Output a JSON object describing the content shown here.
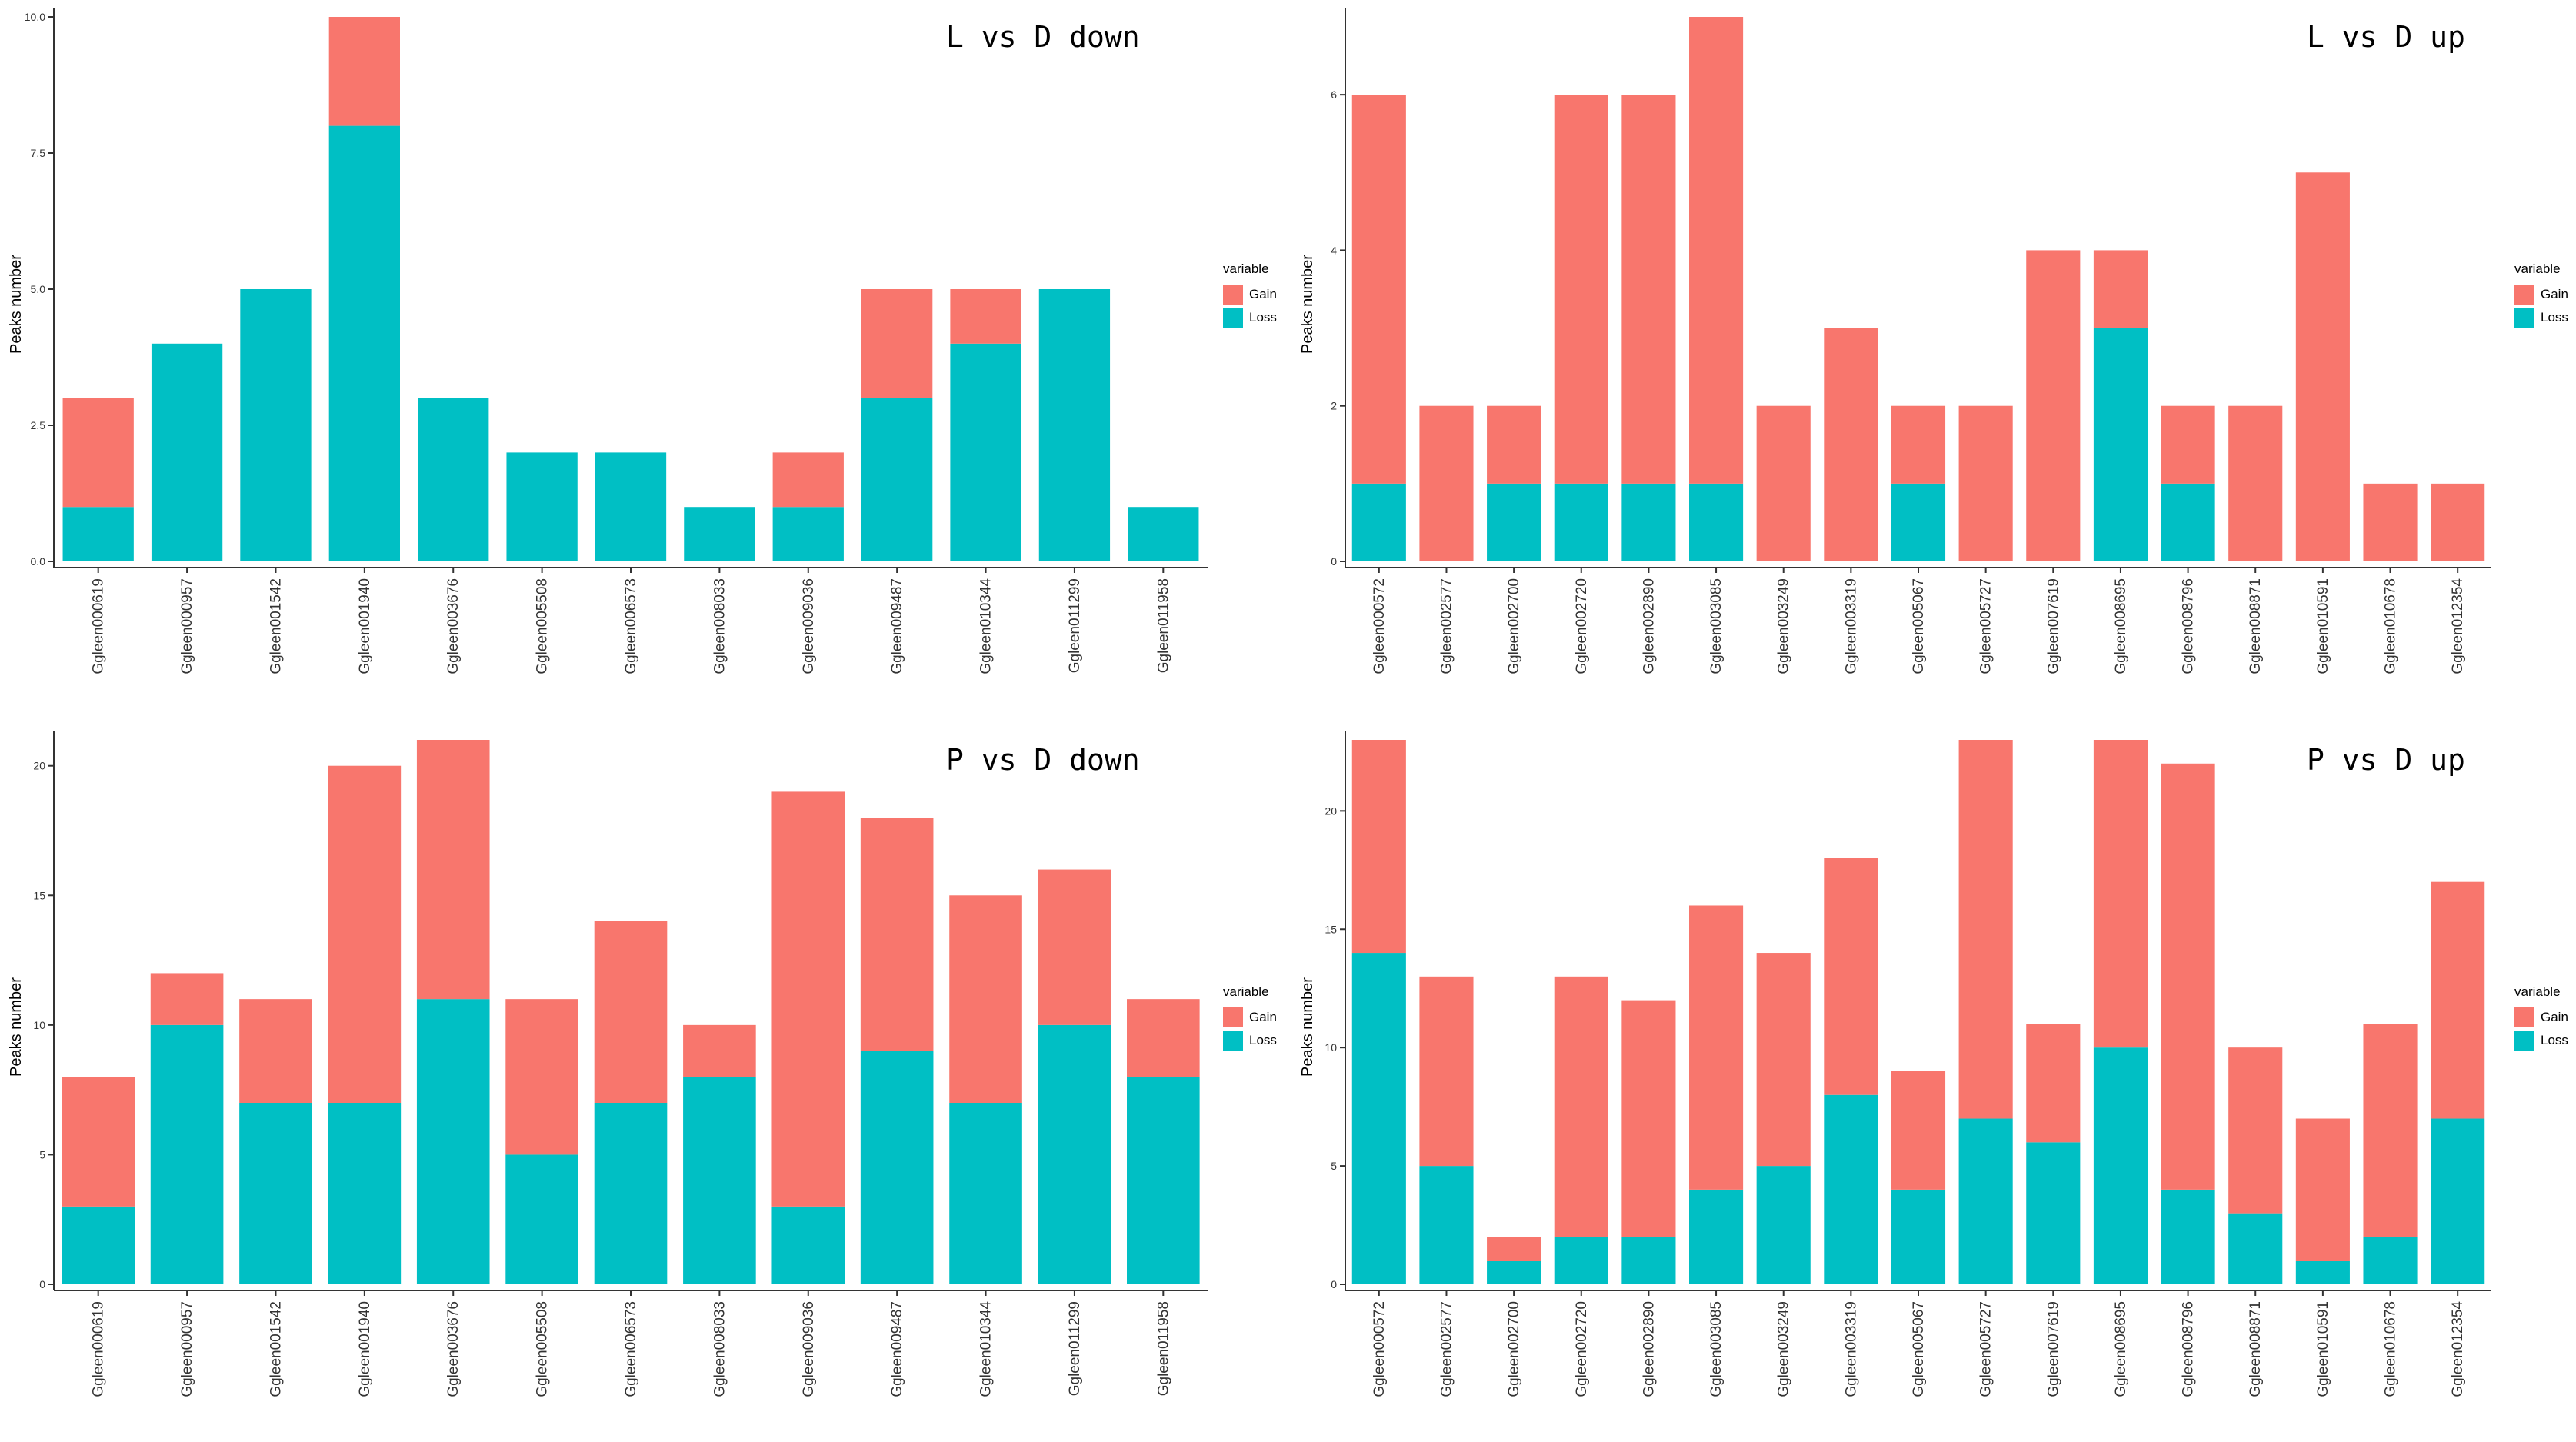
{
  "legend": {
    "title": "variable",
    "gain": "Gain",
    "loss": "Loss"
  },
  "colors": {
    "gain": "#F8766D",
    "loss": "#00BFC4",
    "axis": "#333333"
  },
  "chart_data": [
    {
      "type": "bar",
      "stacked": true,
      "title": "L vs D down",
      "ylabel": "Peaks number",
      "ylim": [
        0,
        10
      ],
      "yticks": [
        "0.0",
        "2.5",
        "5.0",
        "7.5",
        "10.0"
      ],
      "categories": [
        "Ggleen000619",
        "Ggleen000957",
        "Ggleen001542",
        "Ggleen001940",
        "Ggleen003676",
        "Ggleen005508",
        "Ggleen006573",
        "Ggleen008033",
        "Ggleen009036",
        "Ggleen009487",
        "Ggleen010344",
        "Ggleen011299",
        "Ggleen011958"
      ],
      "series": [
        {
          "name": "Loss",
          "values": [
            1,
            4,
            5,
            8,
            3,
            2,
            2,
            1,
            1,
            3,
            4,
            5,
            1
          ]
        },
        {
          "name": "Gain",
          "values": [
            2,
            0,
            0,
            2,
            0,
            0,
            0,
            0,
            1,
            2,
            1,
            0,
            0
          ]
        }
      ]
    },
    {
      "type": "bar",
      "stacked": true,
      "title": "L vs D up",
      "ylabel": "Peaks number",
      "ylim": [
        0,
        7
      ],
      "yticks": [
        "0",
        "2",
        "4",
        "6"
      ],
      "categories": [
        "Ggleen000572",
        "Ggleen002577",
        "Ggleen002700",
        "Ggleen002720",
        "Ggleen002890",
        "Ggleen003085",
        "Ggleen003249",
        "Ggleen003319",
        "Ggleen005067",
        "Ggleen005727",
        "Ggleen007619",
        "Ggleen008695",
        "Ggleen008796",
        "Ggleen008871",
        "Ggleen010591",
        "Ggleen010678",
        "Ggleen012354"
      ],
      "series": [
        {
          "name": "Loss",
          "values": [
            1,
            0,
            1,
            1,
            1,
            1,
            0,
            0,
            1,
            0,
            0,
            3,
            1,
            0,
            0,
            0,
            0
          ]
        },
        {
          "name": "Gain",
          "values": [
            5,
            2,
            1,
            5,
            5,
            6,
            2,
            3,
            1,
            2,
            4,
            1,
            1,
            2,
            5,
            1,
            1
          ]
        }
      ]
    },
    {
      "type": "bar",
      "stacked": true,
      "title": "P vs D down",
      "ylabel": "Peaks number",
      "ylim": [
        0,
        21
      ],
      "yticks": [
        "0",
        "5",
        "10",
        "15",
        "20"
      ],
      "categories": [
        "Ggleen000619",
        "Ggleen000957",
        "Ggleen001542",
        "Ggleen001940",
        "Ggleen003676",
        "Ggleen005508",
        "Ggleen006573",
        "Ggleen008033",
        "Ggleen009036",
        "Ggleen009487",
        "Ggleen010344",
        "Ggleen011299",
        "Ggleen011958"
      ],
      "series": [
        {
          "name": "Loss",
          "values": [
            3,
            10,
            7,
            7,
            11,
            5,
            7,
            8,
            3,
            9,
            7,
            10,
            8
          ]
        },
        {
          "name": "Gain",
          "values": [
            5,
            2,
            4,
            13,
            10,
            6,
            7,
            2,
            16,
            9,
            8,
            6,
            3
          ]
        }
      ]
    },
    {
      "type": "bar",
      "stacked": true,
      "title": "P vs D up",
      "ylabel": "Peaks number",
      "ylim": [
        0,
        23
      ],
      "yticks": [
        "0",
        "5",
        "10",
        "15",
        "20"
      ],
      "categories": [
        "Ggleen000572",
        "Ggleen002577",
        "Ggleen002700",
        "Ggleen002720",
        "Ggleen002890",
        "Ggleen003085",
        "Ggleen003249",
        "Ggleen003319",
        "Ggleen005067",
        "Ggleen005727",
        "Ggleen007619",
        "Ggleen008695",
        "Ggleen008796",
        "Ggleen008871",
        "Ggleen010591",
        "Ggleen010678",
        "Ggleen012354"
      ],
      "series": [
        {
          "name": "Loss",
          "values": [
            14,
            5,
            1,
            2,
            2,
            4,
            5,
            8,
            4,
            7,
            6,
            10,
            4,
            3,
            1,
            2,
            7
          ]
        },
        {
          "name": "Gain",
          "values": [
            9,
            8,
            1,
            11,
            10,
            12,
            9,
            10,
            5,
            16,
            5,
            13,
            18,
            7,
            6,
            9,
            10
          ]
        }
      ]
    }
  ]
}
